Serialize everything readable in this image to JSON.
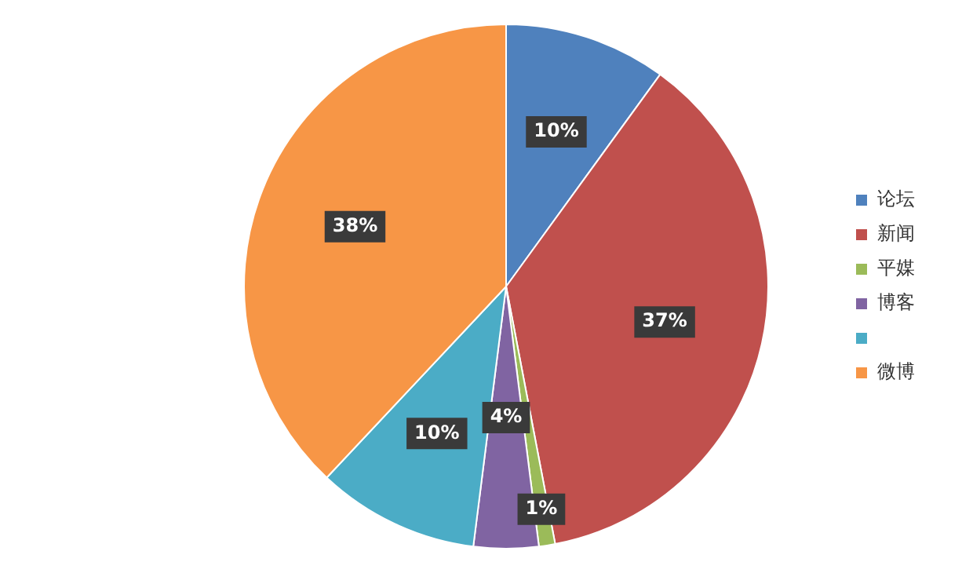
{
  "chart_data": {
    "type": "pie",
    "categories": [
      "论坛",
      "新闻",
      "平媒",
      "博客",
      null,
      "微博"
    ],
    "values": [
      10,
      37,
      1,
      4,
      10,
      38
    ],
    "colors": [
      "#4f81bd",
      "#c0504d",
      "#9bbb59",
      "#8064a2",
      "#4bacc6",
      "#f79646"
    ],
    "value_labels": [
      "10%",
      "37%",
      "1%",
      "4%",
      "10%",
      "38%"
    ],
    "legend": "right"
  }
}
